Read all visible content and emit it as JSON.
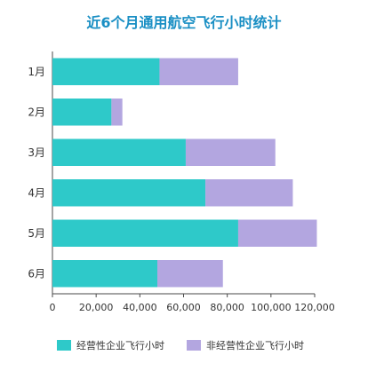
{
  "chart_data": {
    "type": "bar",
    "orientation": "horizontal",
    "stacked": true,
    "title": "近6个月通用航空飞行小时统计",
    "categories": [
      "1月",
      "2月",
      "3月",
      "4月",
      "5月",
      "6月"
    ],
    "series": [
      {
        "name": "经营性企业飞行小时",
        "color": "#2ec9c9",
        "values": [
          49000,
          27000,
          61000,
          70000,
          85000,
          48000
        ]
      },
      {
        "name": "非经营性企业飞行小时",
        "color": "#b3a6e0",
        "values": [
          36000,
          5000,
          41000,
          40000,
          36000,
          30000
        ]
      }
    ],
    "xlim": [
      0,
      120000
    ],
    "xticks": [
      0,
      20000,
      40000,
      60000,
      80000,
      100000,
      120000
    ],
    "xtick_labels": [
      "0",
      "20,000",
      "40,000",
      "60,000",
      "80,000",
      "100,000",
      "120,000"
    ],
    "grid": false,
    "legend": "bottom"
  }
}
